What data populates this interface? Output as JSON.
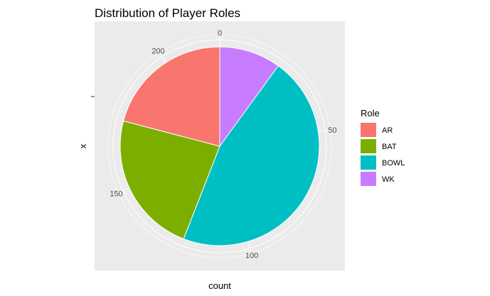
{
  "chart_data": {
    "type": "pie",
    "title": "Distribution of Player Roles",
    "xlabel": "count",
    "ylabel": "x",
    "legend_title": "Role",
    "legend_position": "right",
    "background_color": "#ebebeb",
    "grid_color": "#ffffff",
    "total": 220,
    "theta_ticks": [
      {
        "label": "0",
        "value": 0
      },
      {
        "label": "50",
        "value": 50
      },
      {
        "label": "100",
        "value": 100
      },
      {
        "label": "150",
        "value": 150
      },
      {
        "label": "200",
        "value": 200
      }
    ],
    "slices": [
      {
        "label": "WK",
        "value": 22,
        "color": "#C77CFF"
      },
      {
        "label": "BOWL",
        "value": 101,
        "color": "#00BFC4"
      },
      {
        "label": "BAT",
        "value": 51,
        "color": "#7CAE00"
      },
      {
        "label": "AR",
        "value": 46,
        "color": "#F8766D"
      }
    ],
    "legend_items": [
      {
        "label": "AR",
        "color": "#F8766D"
      },
      {
        "label": "BAT",
        "color": "#7CAE00"
      },
      {
        "label": "BOWL",
        "color": "#00BFC4"
      },
      {
        "label": "WK",
        "color": "#C77CFF"
      }
    ]
  }
}
